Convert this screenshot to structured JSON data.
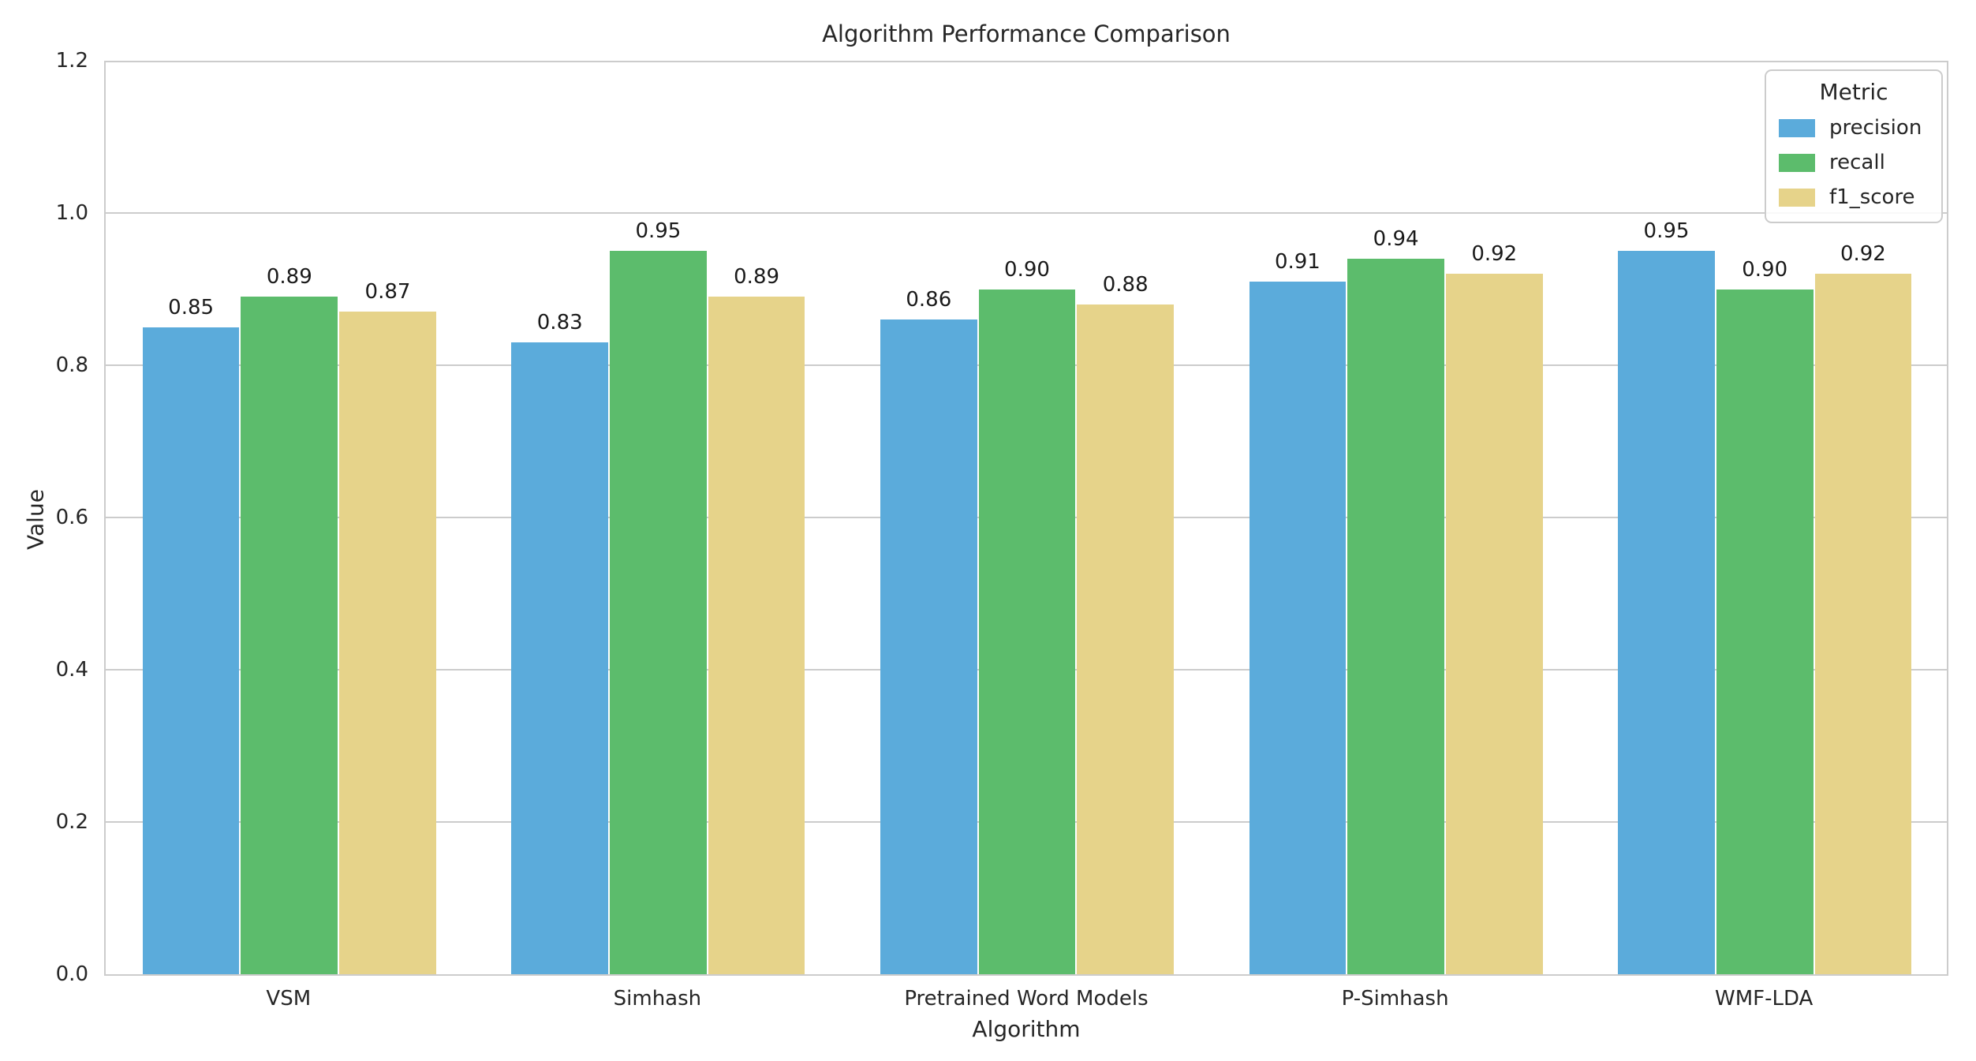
{
  "chart_data": {
    "type": "bar",
    "title": "Algorithm Performance Comparison",
    "xlabel": "Algorithm",
    "ylabel": "Value",
    "ylim": [
      0,
      1.2
    ],
    "yticks": [
      0.0,
      0.2,
      0.4,
      0.6,
      0.8,
      1.0,
      1.2
    ],
    "categories": [
      "VSM",
      "Simhash",
      "Pretrained Word Models",
      "P-Simhash",
      "WMF-LDA"
    ],
    "series": [
      {
        "name": "precision",
        "color": "#5BABDB",
        "values": [
          0.85,
          0.83,
          0.86,
          0.91,
          0.95
        ]
      },
      {
        "name": "recall",
        "color": "#5CBC6C",
        "values": [
          0.89,
          0.95,
          0.9,
          0.94,
          0.9
        ]
      },
      {
        "name": "f1_score",
        "color": "#E6D38A",
        "values": [
          0.87,
          0.89,
          0.88,
          0.92,
          0.92
        ]
      }
    ],
    "bar_labels": [
      [
        "0.85",
        "0.89",
        "0.87"
      ],
      [
        "0.83",
        "0.95",
        "0.89"
      ],
      [
        "0.86",
        "0.90",
        "0.88"
      ],
      [
        "0.91",
        "0.94",
        "0.92"
      ],
      [
        "0.95",
        "0.90",
        "0.92"
      ]
    ],
    "legend_title": "Metric",
    "legend_position": "upper right",
    "grid": true,
    "grid_color": "#cccccc",
    "text_color": "#262626"
  }
}
